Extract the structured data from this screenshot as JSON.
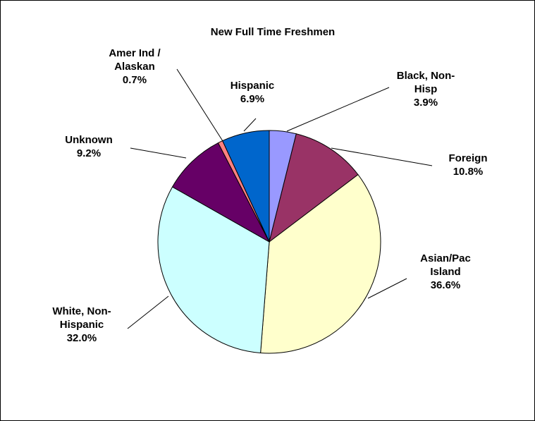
{
  "chart_data": {
    "type": "pie",
    "title": "New Full Time Freshmen",
    "categories": [
      "Black, Non-Hisp",
      "Foreign",
      "Asian/Pac Island",
      "White, Non-Hispanic",
      "Unknown",
      "Amer Ind / Alaskan",
      "Hispanic"
    ],
    "values": [
      3.9,
      10.8,
      36.6,
      32.0,
      9.2,
      0.7,
      6.9
    ],
    "labels": [
      {
        "lines": [
          "Black, Non-",
          "Hisp"
        ],
        "pct": "3.9%"
      },
      {
        "lines": [
          "Foreign"
        ],
        "pct": "10.8%"
      },
      {
        "lines": [
          "Asian/Pac",
          "Island"
        ],
        "pct": "36.6%"
      },
      {
        "lines": [
          "White, Non-",
          "Hispanic"
        ],
        "pct": "32.0%"
      },
      {
        "lines": [
          "Unknown"
        ],
        "pct": "9.2%"
      },
      {
        "lines": [
          "Amer Ind /",
          "Alaskan"
        ],
        "pct": "0.7%"
      },
      {
        "lines": [
          "Hispanic"
        ],
        "pct": "6.9%"
      }
    ],
    "colors": [
      "#9999ff",
      "#993366",
      "#ffffcc",
      "#ccffff",
      "#660066",
      "#ff8080",
      "#0066cc"
    ],
    "start_angle": "12 o'clock",
    "direction": "clockwise",
    "legend": "none"
  }
}
